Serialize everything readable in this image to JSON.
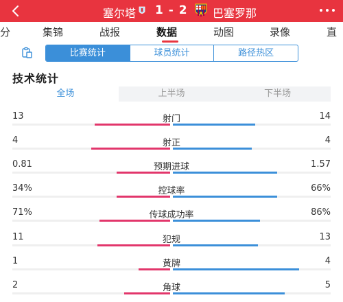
{
  "header": {
    "home_team": "塞尔塔",
    "score": "1 - 2",
    "away_team": "巴塞罗那",
    "brand_color": "#e8343f"
  },
  "nav": {
    "tabs": [
      {
        "label": "分"
      },
      {
        "label": "集锦"
      },
      {
        "label": "战报"
      },
      {
        "label": "数据"
      },
      {
        "label": "动图"
      },
      {
        "label": "录像"
      },
      {
        "label": "直"
      }
    ],
    "active_index": 3
  },
  "stat_types": {
    "icon": "clipboard-icon",
    "options": [
      {
        "label": "比赛统计"
      },
      {
        "label": "球员统计"
      },
      {
        "label": "路径热区"
      }
    ],
    "active_index": 0
  },
  "section_title": "技术统计",
  "period_tabs": {
    "options": [
      {
        "label": "全场"
      },
      {
        "label": "上半场"
      },
      {
        "label": "下半场"
      }
    ],
    "active_index": 0
  },
  "colors": {
    "home_bar": "#e2366b",
    "away_bar": "#3b8fd9"
  },
  "stats": [
    {
      "label": "射门",
      "home": "13",
      "away": "14",
      "home_fill": 0.48,
      "away_fill": 0.52
    },
    {
      "label": "射正",
      "home": "4",
      "away": "4",
      "home_fill": 0.5,
      "away_fill": 0.5
    },
    {
      "label": "预期进球",
      "home": "0.81",
      "away": "1.57",
      "home_fill": 0.34,
      "away_fill": 0.66
    },
    {
      "label": "控球率",
      "home": "34%",
      "away": "66%",
      "home_fill": 0.34,
      "away_fill": 0.66
    },
    {
      "label": "传球成功率",
      "home": "71%",
      "away": "86%",
      "home_fill": 0.45,
      "away_fill": 0.55
    },
    {
      "label": "犯规",
      "home": "11",
      "away": "13",
      "home_fill": 0.46,
      "away_fill": 0.54
    },
    {
      "label": "黄牌",
      "home": "1",
      "away": "4",
      "home_fill": 0.2,
      "away_fill": 0.8
    },
    {
      "label": "角球",
      "home": "2",
      "away": "5",
      "home_fill": 0.29,
      "away_fill": 0.71
    }
  ]
}
